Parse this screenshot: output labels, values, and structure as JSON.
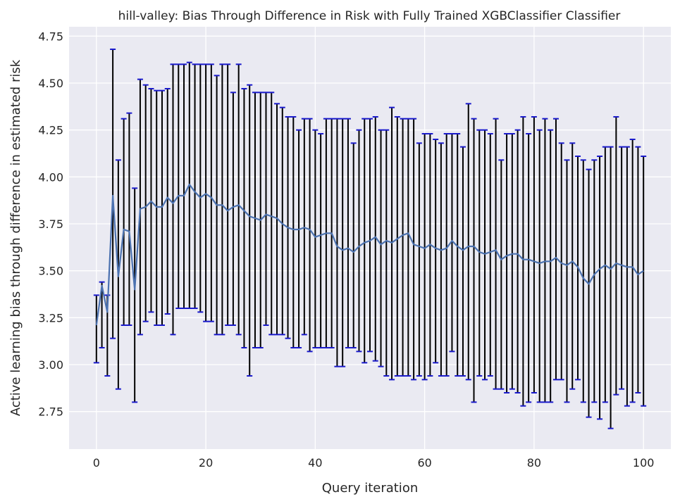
{
  "chart_data": {
    "type": "line",
    "title": "hill-valley: Bias Through Difference in Risk with Fully Trained XGBClassifier Classifier",
    "xlabel": "Query iteration",
    "ylabel": "Active learning bias through difference in estimated risk",
    "xlim": [
      -5,
      105
    ],
    "ylim": [
      2.55,
      4.8
    ],
    "xticks": [
      0,
      20,
      40,
      60,
      80,
      100
    ],
    "yticks": [
      2.75,
      3.0,
      3.25,
      3.5,
      3.75,
      4.0,
      4.25,
      4.5,
      4.75
    ],
    "ytick_labels": [
      "2.75",
      "3.00",
      "3.25",
      "3.50",
      "3.75",
      "4.00",
      "4.25",
      "4.50",
      "4.75"
    ],
    "grid": true,
    "error_bars": true,
    "colors": {
      "line": "#4c72b0",
      "bar": "#000000",
      "cap": "#1a1acc",
      "background": "#eaeaf2",
      "grid": "#ffffff"
    },
    "x": [
      0,
      1,
      2,
      3,
      4,
      5,
      6,
      7,
      8,
      9,
      10,
      11,
      12,
      13,
      14,
      15,
      16,
      17,
      18,
      19,
      20,
      21,
      22,
      23,
      24,
      25,
      26,
      27,
      28,
      29,
      30,
      31,
      32,
      33,
      34,
      35,
      36,
      37,
      38,
      39,
      40,
      41,
      42,
      43,
      44,
      45,
      46,
      47,
      48,
      49,
      50,
      51,
      52,
      53,
      54,
      55,
      56,
      57,
      58,
      59,
      60,
      61,
      62,
      63,
      64,
      65,
      66,
      67,
      68,
      69,
      70,
      71,
      72,
      73,
      74,
      75,
      76,
      77,
      78,
      79,
      80,
      81,
      82,
      83,
      84,
      85,
      86,
      87,
      88,
      89,
      90,
      91,
      92,
      93,
      94,
      95,
      96,
      97,
      98,
      99,
      100
    ],
    "mean": [
      3.21,
      3.42,
      3.28,
      3.9,
      3.47,
      3.72,
      3.71,
      3.4,
      3.83,
      3.84,
      3.87,
      3.84,
      3.84,
      3.89,
      3.86,
      3.9,
      3.9,
      3.96,
      3.92,
      3.89,
      3.91,
      3.89,
      3.85,
      3.85,
      3.82,
      3.84,
      3.85,
      3.82,
      3.79,
      3.78,
      3.77,
      3.8,
      3.79,
      3.78,
      3.75,
      3.73,
      3.72,
      3.72,
      3.73,
      3.72,
      3.68,
      3.69,
      3.7,
      3.7,
      3.63,
      3.61,
      3.62,
      3.6,
      3.63,
      3.65,
      3.66,
      3.68,
      3.64,
      3.66,
      3.65,
      3.67,
      3.69,
      3.7,
      3.64,
      3.63,
      3.62,
      3.64,
      3.62,
      3.61,
      3.62,
      3.66,
      3.63,
      3.61,
      3.63,
      3.63,
      3.6,
      3.59,
      3.6,
      3.61,
      3.56,
      3.58,
      3.59,
      3.59,
      3.56,
      3.56,
      3.55,
      3.54,
      3.55,
      3.55,
      3.57,
      3.54,
      3.53,
      3.55,
      3.52,
      3.46,
      3.43,
      3.48,
      3.51,
      3.53,
      3.51,
      3.54,
      3.53,
      3.52,
      3.52,
      3.48,
      3.5
    ],
    "upper": [
      3.37,
      3.44,
      3.37,
      4.68,
      4.09,
      4.31,
      4.34,
      3.94,
      4.52,
      4.49,
      4.47,
      4.46,
      4.46,
      4.47,
      4.6,
      4.6,
      4.6,
      4.61,
      4.6,
      4.6,
      4.6,
      4.6,
      4.54,
      4.6,
      4.6,
      4.45,
      4.6,
      4.47,
      4.49,
      4.45,
      4.45,
      4.45,
      4.45,
      4.39,
      4.37,
      4.32,
      4.32,
      4.25,
      4.31,
      4.31,
      4.25,
      4.23,
      4.31,
      4.31,
      4.31,
      4.31,
      4.31,
      4.18,
      4.25,
      4.31,
      4.31,
      4.32,
      4.25,
      4.25,
      4.37,
      4.32,
      4.31,
      4.31,
      4.31,
      4.18,
      4.23,
      4.23,
      4.2,
      4.18,
      4.23,
      4.23,
      4.23,
      4.16,
      4.39,
      4.31,
      4.25,
      4.25,
      4.23,
      4.31,
      4.09,
      4.23,
      4.23,
      4.25,
      4.32,
      4.23,
      4.32,
      4.25,
      4.31,
      4.25,
      4.31,
      4.18,
      4.09,
      4.18,
      4.11,
      4.09,
      4.04,
      4.09,
      4.11,
      4.16,
      4.16,
      4.32,
      4.16,
      4.16,
      4.2,
      4.16,
      4.11
    ],
    "lower": [
      3.01,
      3.09,
      2.94,
      3.14,
      2.87,
      3.21,
      3.21,
      2.8,
      3.16,
      3.23,
      3.28,
      3.21,
      3.21,
      3.27,
      3.16,
      3.3,
      3.3,
      3.3,
      3.3,
      3.28,
      3.23,
      3.23,
      3.16,
      3.16,
      3.21,
      3.21,
      3.16,
      3.09,
      2.94,
      3.09,
      3.09,
      3.21,
      3.16,
      3.16,
      3.16,
      3.14,
      3.09,
      3.09,
      3.16,
      3.07,
      3.09,
      3.09,
      3.09,
      3.09,
      2.99,
      2.99,
      3.09,
      3.09,
      3.07,
      3.01,
      3.07,
      3.02,
      2.99,
      2.94,
      2.92,
      2.94,
      2.94,
      2.94,
      2.92,
      2.94,
      2.92,
      2.94,
      3.01,
      2.94,
      2.94,
      3.07,
      2.94,
      2.94,
      2.92,
      2.8,
      2.94,
      2.92,
      2.94,
      2.87,
      2.87,
      2.85,
      2.87,
      2.85,
      2.78,
      2.8,
      2.85,
      2.8,
      2.8,
      2.8,
      2.92,
      2.92,
      2.8,
      2.87,
      2.92,
      2.8,
      2.72,
      2.8,
      2.71,
      2.8,
      2.66,
      2.84,
      2.87,
      2.78,
      2.8,
      2.85,
      2.78
    ]
  }
}
